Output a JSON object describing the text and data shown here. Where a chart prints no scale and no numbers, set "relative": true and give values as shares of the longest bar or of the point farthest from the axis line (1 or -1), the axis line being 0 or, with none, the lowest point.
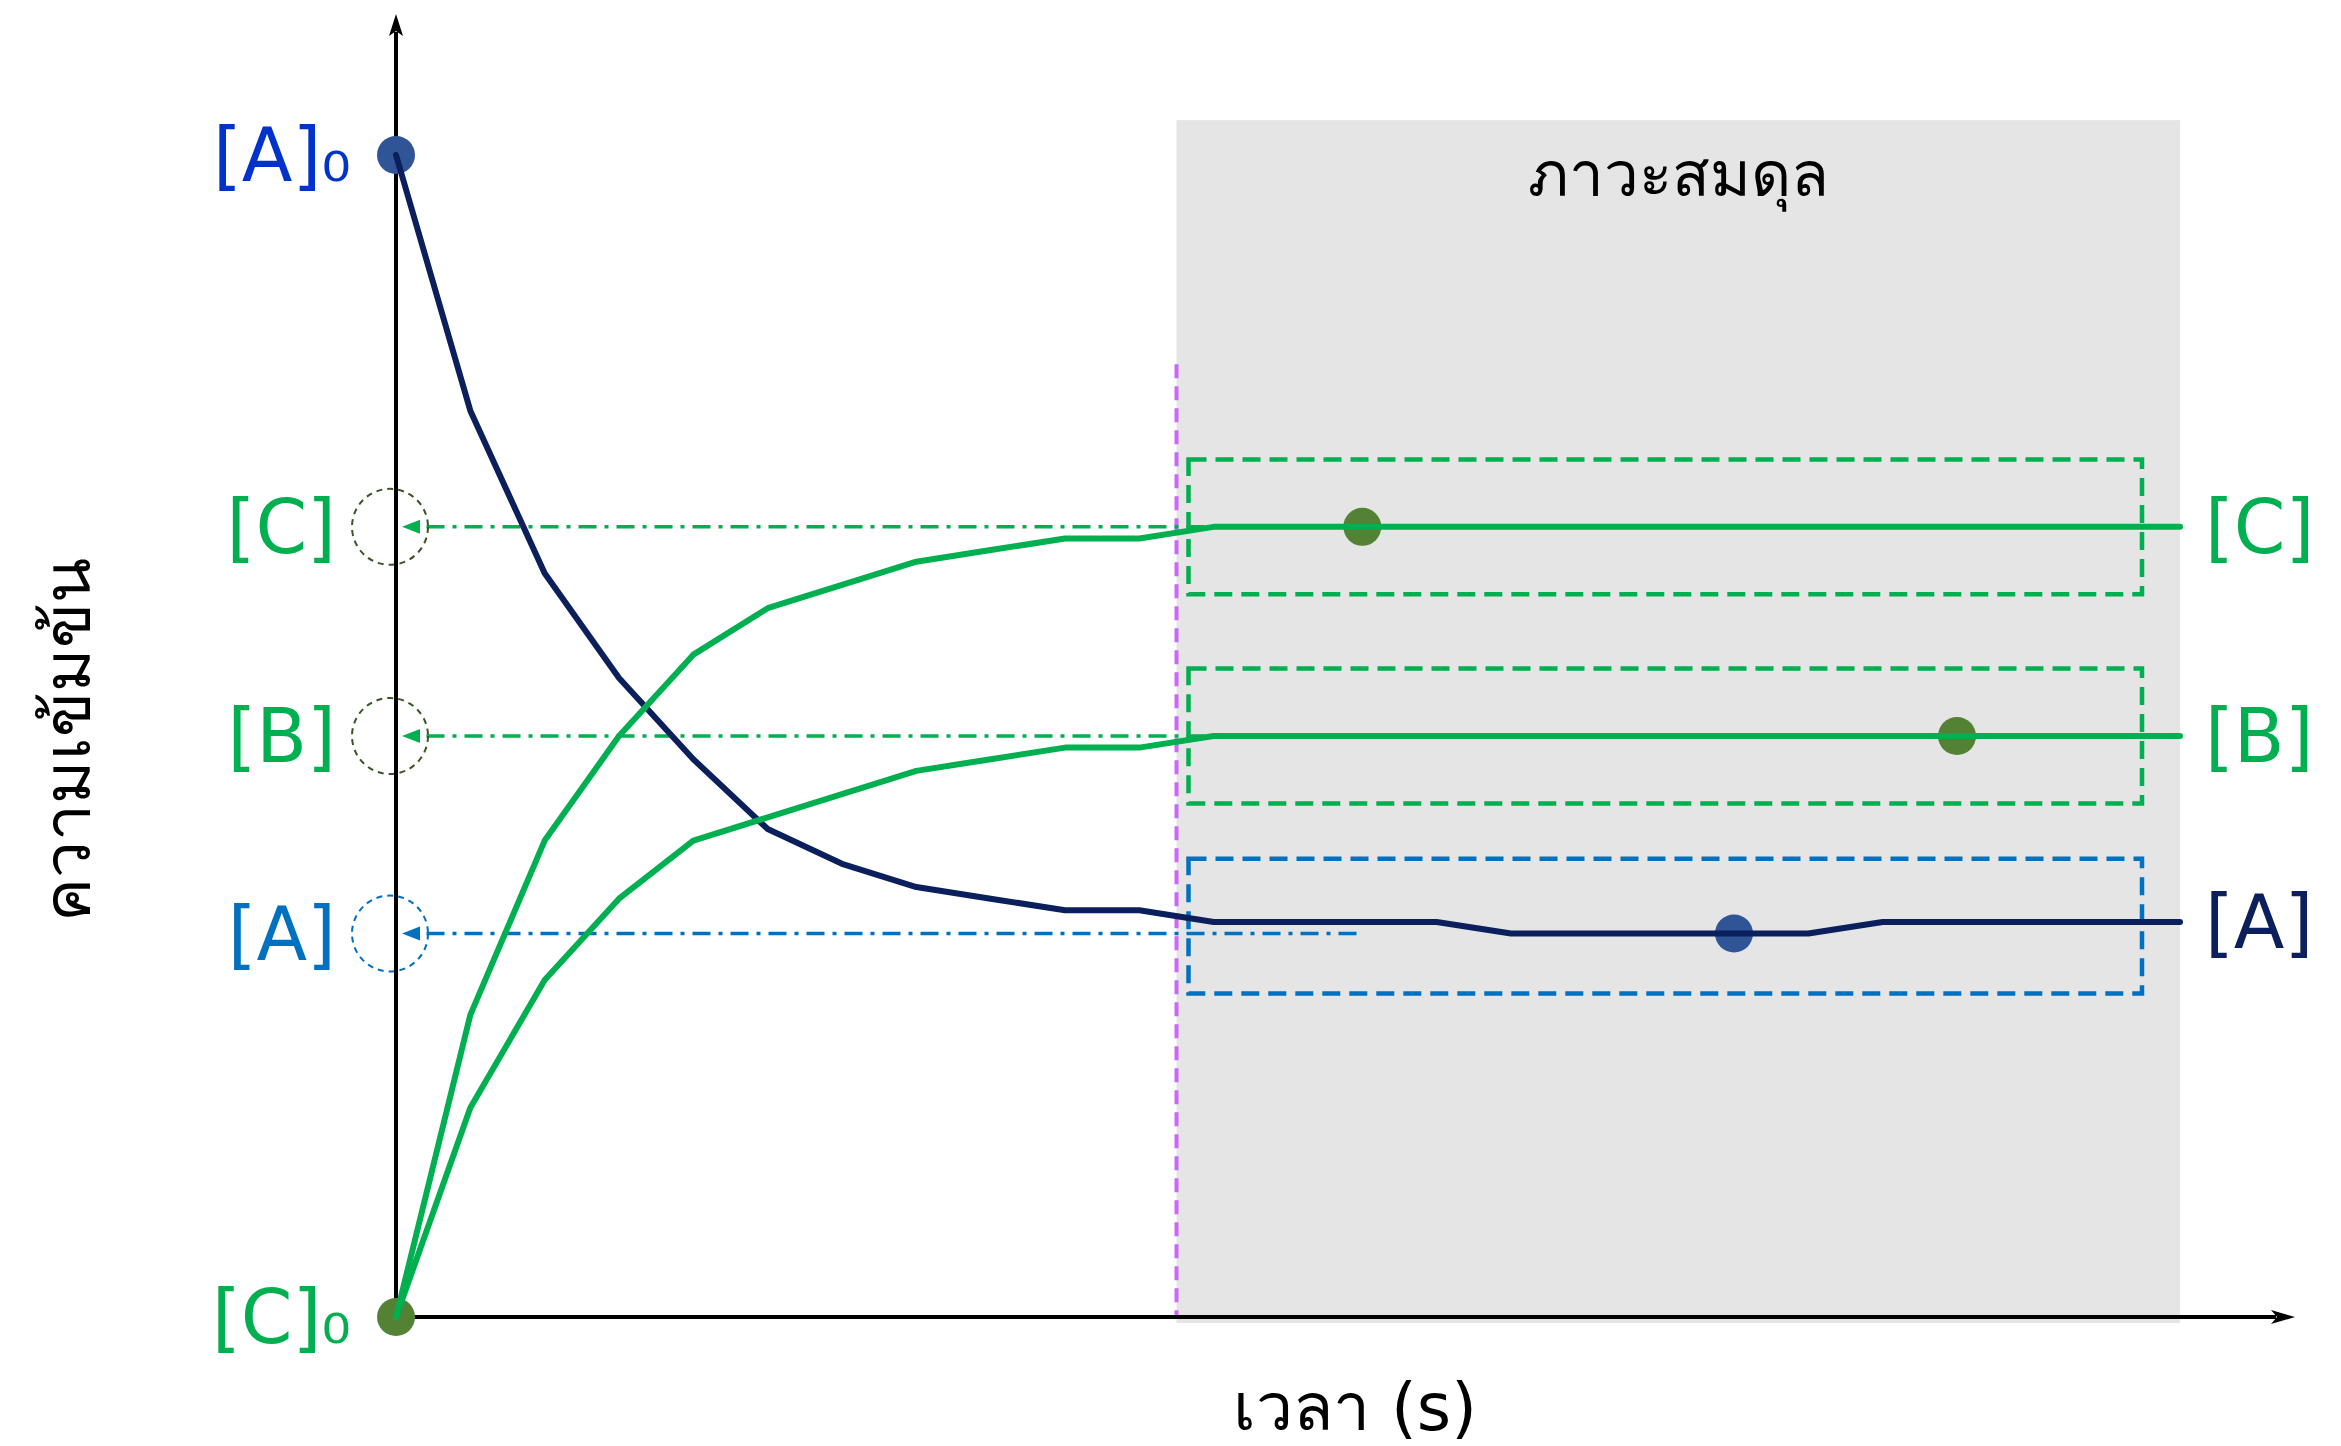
{
  "chart_data": {
    "type": "line",
    "relative": true,
    "xlabel": "เวลา (s)",
    "ylabel": "ความเข้มข้น",
    "categories": [
      null,
      null,
      null,
      null,
      null,
      null,
      null,
      null,
      null,
      null,
      null,
      null,
      null,
      null,
      null,
      null,
      null,
      null,
      null,
      null,
      null,
      null,
      null,
      null,
      null
    ],
    "series": [
      {
        "name": "[A]",
        "color": "#0b1f5c",
        "values": [
          1,
          0.78,
          0.64,
          0.55,
          0.48,
          0.42,
          0.39,
          0.37,
          0.36,
          0.35,
          0.35,
          0.34,
          0.34,
          0.34,
          0.34,
          0.33,
          0.33,
          0.33,
          0.33,
          0.33,
          0.34,
          0.34,
          0.34,
          0.34,
          0.34
        ]
      },
      {
        "name": "[B]",
        "color": "#00b050",
        "values": [
          0,
          0.18,
          0.29,
          0.36,
          0.41,
          0.43,
          0.45,
          0.47,
          0.48,
          0.49,
          0.49,
          0.5,
          0.5,
          0.5,
          0.5,
          0.5,
          0.5,
          0.5,
          0.5,
          0.5,
          0.5,
          0.5,
          0.5,
          0.5,
          0.5
        ]
      },
      {
        "name": "[C]",
        "color": "#00b050",
        "values": [
          0,
          0.26,
          0.41,
          0.5,
          0.57,
          0.61,
          0.63,
          0.65,
          0.66,
          0.67,
          0.67,
          0.68,
          0.68,
          0.68,
          0.68,
          0.68,
          0.68,
          0.68,
          0.68,
          0.68,
          0.68,
          0.68,
          0.68,
          0.68,
          0.68
        ]
      }
    ],
    "annotations": [
      "[A]₀",
      "[C]₀",
      "ภาวะสมดุล"
    ],
    "ref_lines": [
      {
        "axis": "y",
        "value": 0.68,
        "label": "[C]",
        "color": "#00b050",
        "line_style": "dashed"
      },
      {
        "axis": "y",
        "value": 0.5,
        "label": "[B]",
        "color": "#00b050",
        "line_style": "dashed"
      },
      {
        "axis": "y",
        "value": 0.33,
        "label": "[A]",
        "color": "#0070c0",
        "line_style": "dashed"
      }
    ]
  }
}
